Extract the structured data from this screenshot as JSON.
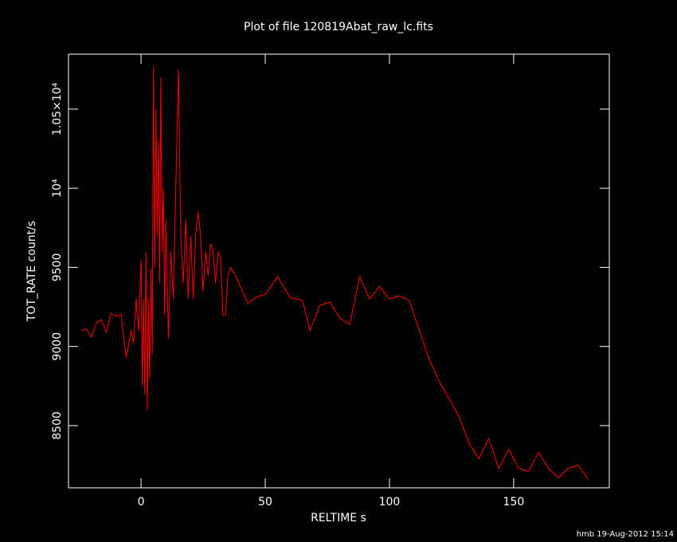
{
  "chart_data": {
    "type": "line",
    "title": "Plot of file 120819Abat_raw_lc.fits",
    "x_label": "RELTIME  s",
    "y_label": "TOT_RATE  count/s",
    "footer": "hmb 19-Aug-2012 15:14",
    "color": "#ff0000",
    "x": [
      -24,
      -22,
      -20,
      -18,
      -16,
      -14,
      -12,
      -10,
      -8,
      -6,
      -4,
      -3,
      -2,
      -1,
      0,
      0.5,
      1,
      1.5,
      2,
      2.5,
      3,
      3.5,
      4,
      4.5,
      5,
      5.5,
      6,
      6.5,
      7,
      7.5,
      8,
      8.5,
      9,
      9.5,
      10,
      11,
      12,
      13,
      14,
      15,
      16,
      17,
      18,
      19,
      20,
      21,
      22,
      23,
      24,
      25,
      26,
      27,
      28,
      29,
      30,
      31,
      32,
      33,
      34,
      35,
      36,
      38,
      40,
      43,
      46,
      50,
      55,
      60,
      65,
      68,
      72,
      76,
      80,
      84,
      88,
      92,
      96,
      100,
      104,
      108,
      112,
      116,
      120,
      124,
      128,
      132,
      136,
      140,
      144,
      148,
      152,
      156,
      160,
      164,
      168,
      172,
      176,
      180
    ],
    "values": [
      9100,
      9110,
      9060,
      9150,
      9170,
      9090,
      9210,
      9190,
      9200,
      8930,
      9100,
      9020,
      9300,
      9100,
      9550,
      8750,
      9300,
      8700,
      9600,
      8600,
      9300,
      8800,
      9500,
      8950,
      10770,
      9500,
      10500,
      9700,
      10300,
      9400,
      10700,
      9600,
      10000,
      9200,
      9800,
      9050,
      9600,
      9300,
      10000,
      10750,
      9700,
      9400,
      9800,
      9300,
      9700,
      9300,
      9700,
      9850,
      9700,
      9350,
      9600,
      9450,
      9650,
      9600,
      9400,
      9600,
      9550,
      9200,
      9200,
      9450,
      9500,
      9450,
      9380,
      9270,
      9310,
      9330,
      9440,
      9310,
      9290,
      9100,
      9260,
      9280,
      9180,
      9140,
      9440,
      9300,
      9380,
      9300,
      9320,
      9290,
      9100,
      8920,
      8780,
      8670,
      8560,
      8390,
      8290,
      8420,
      8230,
      8350,
      8230,
      8210,
      8330,
      8230,
      8170,
      8230,
      8250,
      8160
    ],
    "xlim": [
      -29.2,
      188.5
    ],
    "ylim": [
      8107,
      10847
    ],
    "xticks": [
      0,
      50,
      100,
      150
    ],
    "yticks": [
      8500,
      9000,
      9500,
      {
        "value": 10000,
        "label": "10⁴"
      },
      {
        "value": 10500,
        "label": "1.05×10⁴"
      }
    ]
  }
}
